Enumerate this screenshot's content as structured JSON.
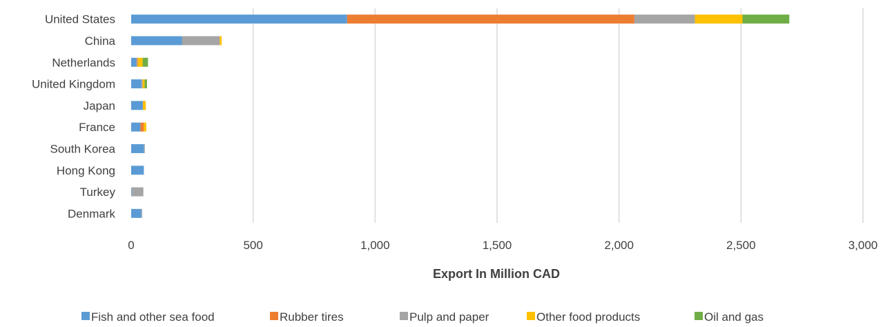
{
  "chart_data": {
    "type": "bar",
    "orientation": "horizontal",
    "stacked": true,
    "title": "",
    "xlabel": "Export In Million CAD",
    "ylabel": "",
    "xlim": [
      0,
      3000
    ],
    "xticks": [
      0,
      500,
      1000,
      1500,
      2000,
      2500,
      3000
    ],
    "xtick_labels": [
      "0",
      "500",
      "1,000",
      "1,500",
      "2,000",
      "2,500",
      "3,000"
    ],
    "grid": true,
    "legend_position": "bottom",
    "categories": [
      "United States",
      "China",
      "Netherlands",
      "United Kingdom",
      "Japan",
      "France",
      "South Korea",
      "Hong Kong",
      "Turkey",
      "Denmark"
    ],
    "series": [
      {
        "name": "Fish and other sea food",
        "color": "#5B9BD5",
        "values": [
          885,
          208,
          22,
          42,
          48,
          38,
          53,
          52,
          2,
          42
        ]
      },
      {
        "name": "Rubber tires",
        "color": "#ED7D31",
        "values": [
          1178,
          0,
          2,
          0,
          0,
          14,
          0,
          0,
          0,
          0
        ]
      },
      {
        "name": "Pulp and paper",
        "color": "#A5A5A5",
        "values": [
          248,
          155,
          3,
          5,
          0,
          0,
          3,
          0,
          48,
          3
        ]
      },
      {
        "name": "Other food products",
        "color": "#FFC000",
        "values": [
          195,
          8,
          20,
          8,
          12,
          10,
          0,
          0,
          0,
          0
        ]
      },
      {
        "name": "Oil and gas",
        "color": "#70AD47",
        "values": [
          192,
          0,
          22,
          10,
          0,
          0,
          0,
          0,
          0,
          0
        ]
      }
    ]
  }
}
